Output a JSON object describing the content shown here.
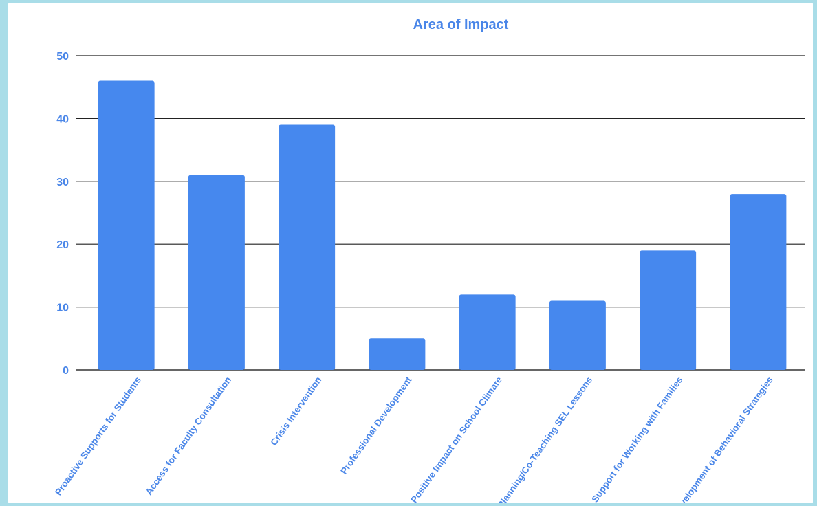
{
  "chart_data": {
    "type": "bar",
    "title": "Area of Impact",
    "xlabel": "",
    "ylabel": "",
    "ylim": [
      0,
      50
    ],
    "yticks": [
      0,
      10,
      20,
      30,
      40,
      50
    ],
    "grid": true,
    "bar_color": "#4688ee",
    "text_color": "#4a86e8",
    "categories": [
      "Proactive Supports for Students",
      "Access for Faculty Consultation",
      "Crisis Intervention",
      "Professional Development",
      "Positive Impact on School Climate",
      "Planning/Co-Teaching SEL Lessons",
      "Support for Working with Families",
      "Development of Behavioral Strategies"
    ],
    "values": [
      46,
      31,
      39,
      5,
      12,
      11,
      19,
      28
    ]
  }
}
